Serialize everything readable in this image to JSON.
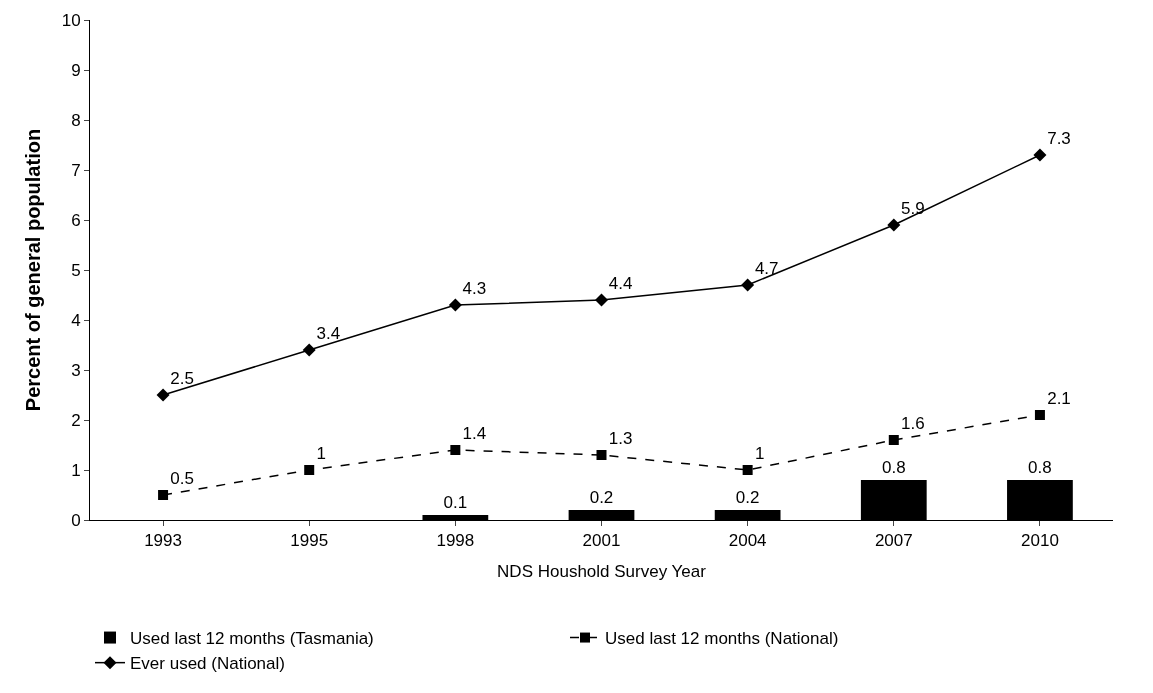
{
  "chart_data": {
    "type": "bar",
    "xlabel": "NDS Houshold Survey Year",
    "ylabel": "Percent of general population",
    "categories": [
      "1993",
      "1995",
      "1998",
      "2001",
      "2004",
      "2007",
      "2010"
    ],
    "series": [
      {
        "name": "Used last 12 months (Tasmania)",
        "color": "#000000",
        "values": [
          null,
          null,
          0.1,
          0.2,
          0.2,
          0.8,
          0.8
        ]
      },
      {
        "name": "Used last 12 months (National)",
        "type": "line",
        "color": "#000000",
        "marker": "square",
        "line_style": "dashed",
        "values": [
          0.5,
          1,
          1.4,
          1.3,
          1,
          1.6,
          2.1
        ]
      },
      {
        "name": "Ever used (National)",
        "type": "line",
        "color": "#000000",
        "marker": "diamond",
        "line_style": "solid",
        "values": [
          2.5,
          3.4,
          4.3,
          4.4,
          4.7,
          5.9,
          7.3
        ]
      }
    ],
    "ylim": [
      0,
      10
    ],
    "yticks": [
      0,
      1,
      2,
      3,
      4,
      5,
      6,
      7,
      8,
      9,
      10
    ],
    "data_labels": true,
    "grid": false,
    "legend": "bottom"
  }
}
